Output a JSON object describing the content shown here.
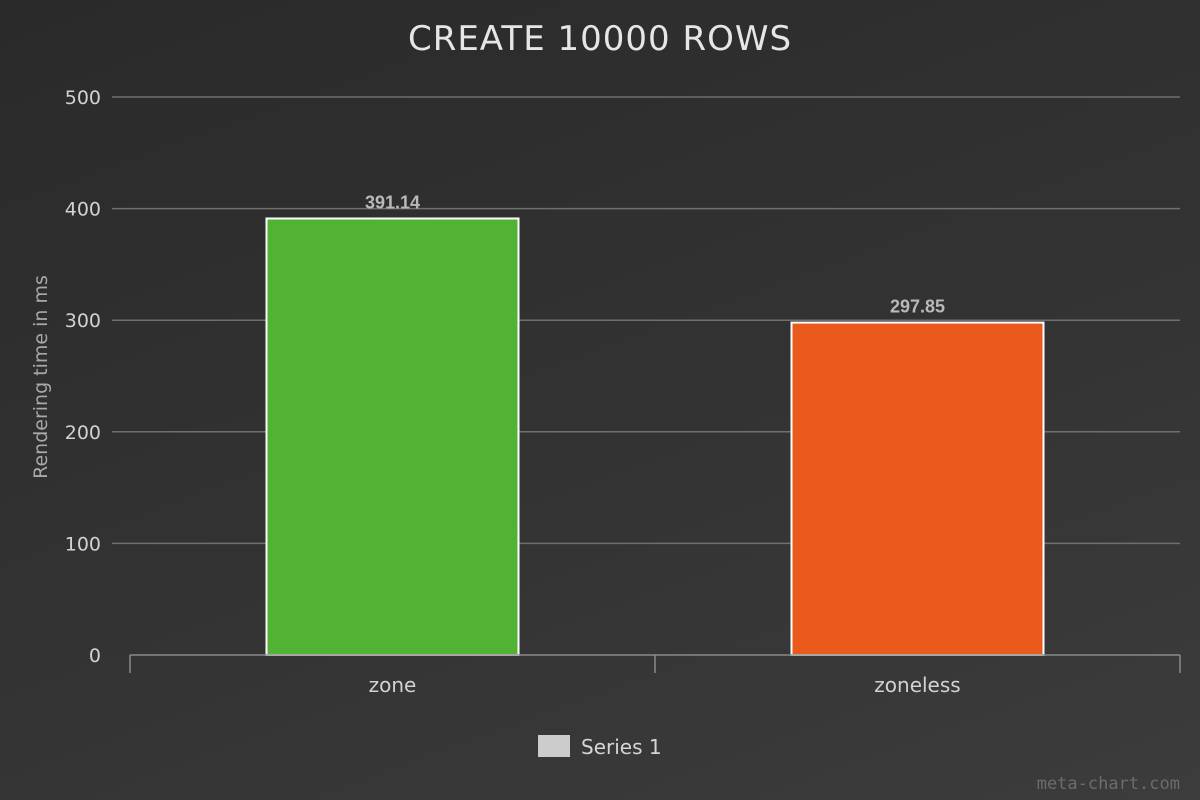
{
  "chart_data": {
    "type": "bar",
    "title": "CREATE 10000 ROWS",
    "xlabel": "",
    "ylabel": "Rendering time in ms",
    "ylim": [
      0,
      500
    ],
    "yticks": [
      0,
      100,
      200,
      300,
      400,
      500
    ],
    "categories": [
      "zone",
      "zoneless"
    ],
    "series": [
      {
        "name": "Series 1",
        "values": [
          391.14,
          297.85
        ],
        "colors": [
          "#52b234",
          "#ea5a1c"
        ]
      }
    ],
    "data_labels": [
      "391.14",
      "297.85"
    ],
    "grid": true,
    "legend": {
      "position": "bottom-center",
      "swatch_color": "#cccccc"
    }
  },
  "watermark": "meta-chart.com"
}
